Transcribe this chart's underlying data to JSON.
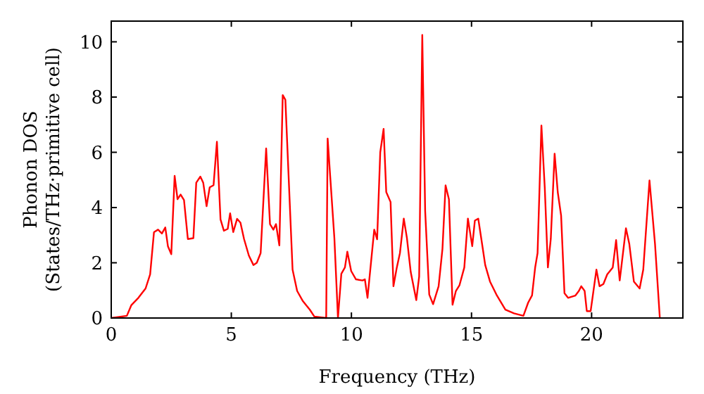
{
  "chart_data": {
    "type": "line",
    "xlabel": "Frequency (THz)",
    "ylabel": "Phonon DOS\n(States/THz·primitive cell)",
    "xlim": [
      0,
      23.8
    ],
    "ylim": [
      0,
      10.75
    ],
    "xticks": [
      0,
      5,
      10,
      15,
      20
    ],
    "yticks": [
      0,
      2,
      4,
      6,
      8,
      10
    ],
    "grid": false,
    "marker": "none",
    "line_style": "solid",
    "series": [
      {
        "color": "#ff0000",
        "x": [
          0,
          0.65,
          0.84,
          1.13,
          1.43,
          1.62,
          1.78,
          1.95,
          2.11,
          2.25,
          2.36,
          2.5,
          2.64,
          2.76,
          2.89,
          3.03,
          3.19,
          3.42,
          3.54,
          3.71,
          3.83,
          3.97,
          4.1,
          4.26,
          4.4,
          4.55,
          4.69,
          4.85,
          4.95,
          5.08,
          5.24,
          5.38,
          5.53,
          5.73,
          5.92,
          6.06,
          6.22,
          6.45,
          6.61,
          6.75,
          6.86,
          7.0,
          7.14,
          7.25,
          7.55,
          7.74,
          7.98,
          8.27,
          8.46,
          8.95,
          9.01,
          9.29,
          9.44,
          9.58,
          9.73,
          9.83,
          9.99,
          10.19,
          10.46,
          10.56,
          10.67,
          10.95,
          11.07,
          11.2,
          11.34,
          11.45,
          11.63,
          11.75,
          11.89,
          12.02,
          12.18,
          12.31,
          12.47,
          12.7,
          12.82,
          12.95,
          13.07,
          13.24,
          13.4,
          13.63,
          13.79,
          13.92,
          14.06,
          14.21,
          14.35,
          14.5,
          14.7,
          14.85,
          15.03,
          15.14,
          15.28,
          15.44,
          15.57,
          15.77,
          16.06,
          16.41,
          16.77,
          17.16,
          17.36,
          17.52,
          17.65,
          17.75,
          17.91,
          18.05,
          18.18,
          18.3,
          18.46,
          18.59,
          18.73,
          18.87,
          19.02,
          19.32,
          19.47,
          19.57,
          19.71,
          19.8,
          19.96,
          20.2,
          20.33,
          20.49,
          20.65,
          20.88,
          21.02,
          21.17,
          21.43,
          21.57,
          21.76,
          22.0,
          22.15,
          22.41,
          22.64,
          22.84
        ],
        "values": [
          0,
          0.08,
          0.47,
          0.73,
          1.07,
          1.58,
          3.11,
          3.2,
          3.06,
          3.28,
          2.6,
          2.31,
          5.15,
          4.3,
          4.47,
          4.27,
          2.86,
          2.89,
          4.9,
          5.12,
          4.9,
          4.05,
          4.73,
          4.81,
          6.38,
          3.57,
          3.16,
          3.23,
          3.79,
          3.11,
          3.59,
          3.45,
          2.86,
          2.26,
          1.92,
          2.0,
          2.35,
          6.14,
          3.4,
          3.2,
          3.4,
          2.63,
          8.07,
          7.9,
          1.75,
          0.98,
          0.61,
          0.3,
          0.05,
          0,
          6.5,
          2.9,
          0,
          1.6,
          1.83,
          2.4,
          1.7,
          1.4,
          1.36,
          1.4,
          0.73,
          3.2,
          2.85,
          6.0,
          6.85,
          4.56,
          4.2,
          1.15,
          1.83,
          2.35,
          3.6,
          2.9,
          1.66,
          0.65,
          1.5,
          10.25,
          3.88,
          0.85,
          0.5,
          1.15,
          2.5,
          4.8,
          4.3,
          0.48,
          0.98,
          1.19,
          1.83,
          3.6,
          2.6,
          3.53,
          3.6,
          2.68,
          1.92,
          1.32,
          0.81,
          0.3,
          0.17,
          0.08,
          0.56,
          0.82,
          1.83,
          2.35,
          6.97,
          4.72,
          1.83,
          2.86,
          5.95,
          4.56,
          3.71,
          0.9,
          0.73,
          0.81,
          0.98,
          1.15,
          0.98,
          0.25,
          0.25,
          1.75,
          1.15,
          1.23,
          1.58,
          1.83,
          2.82,
          1.36,
          3.25,
          2.68,
          1.32,
          1.07,
          1.75,
          4.98,
          2.68,
          0
        ]
      }
    ]
  }
}
